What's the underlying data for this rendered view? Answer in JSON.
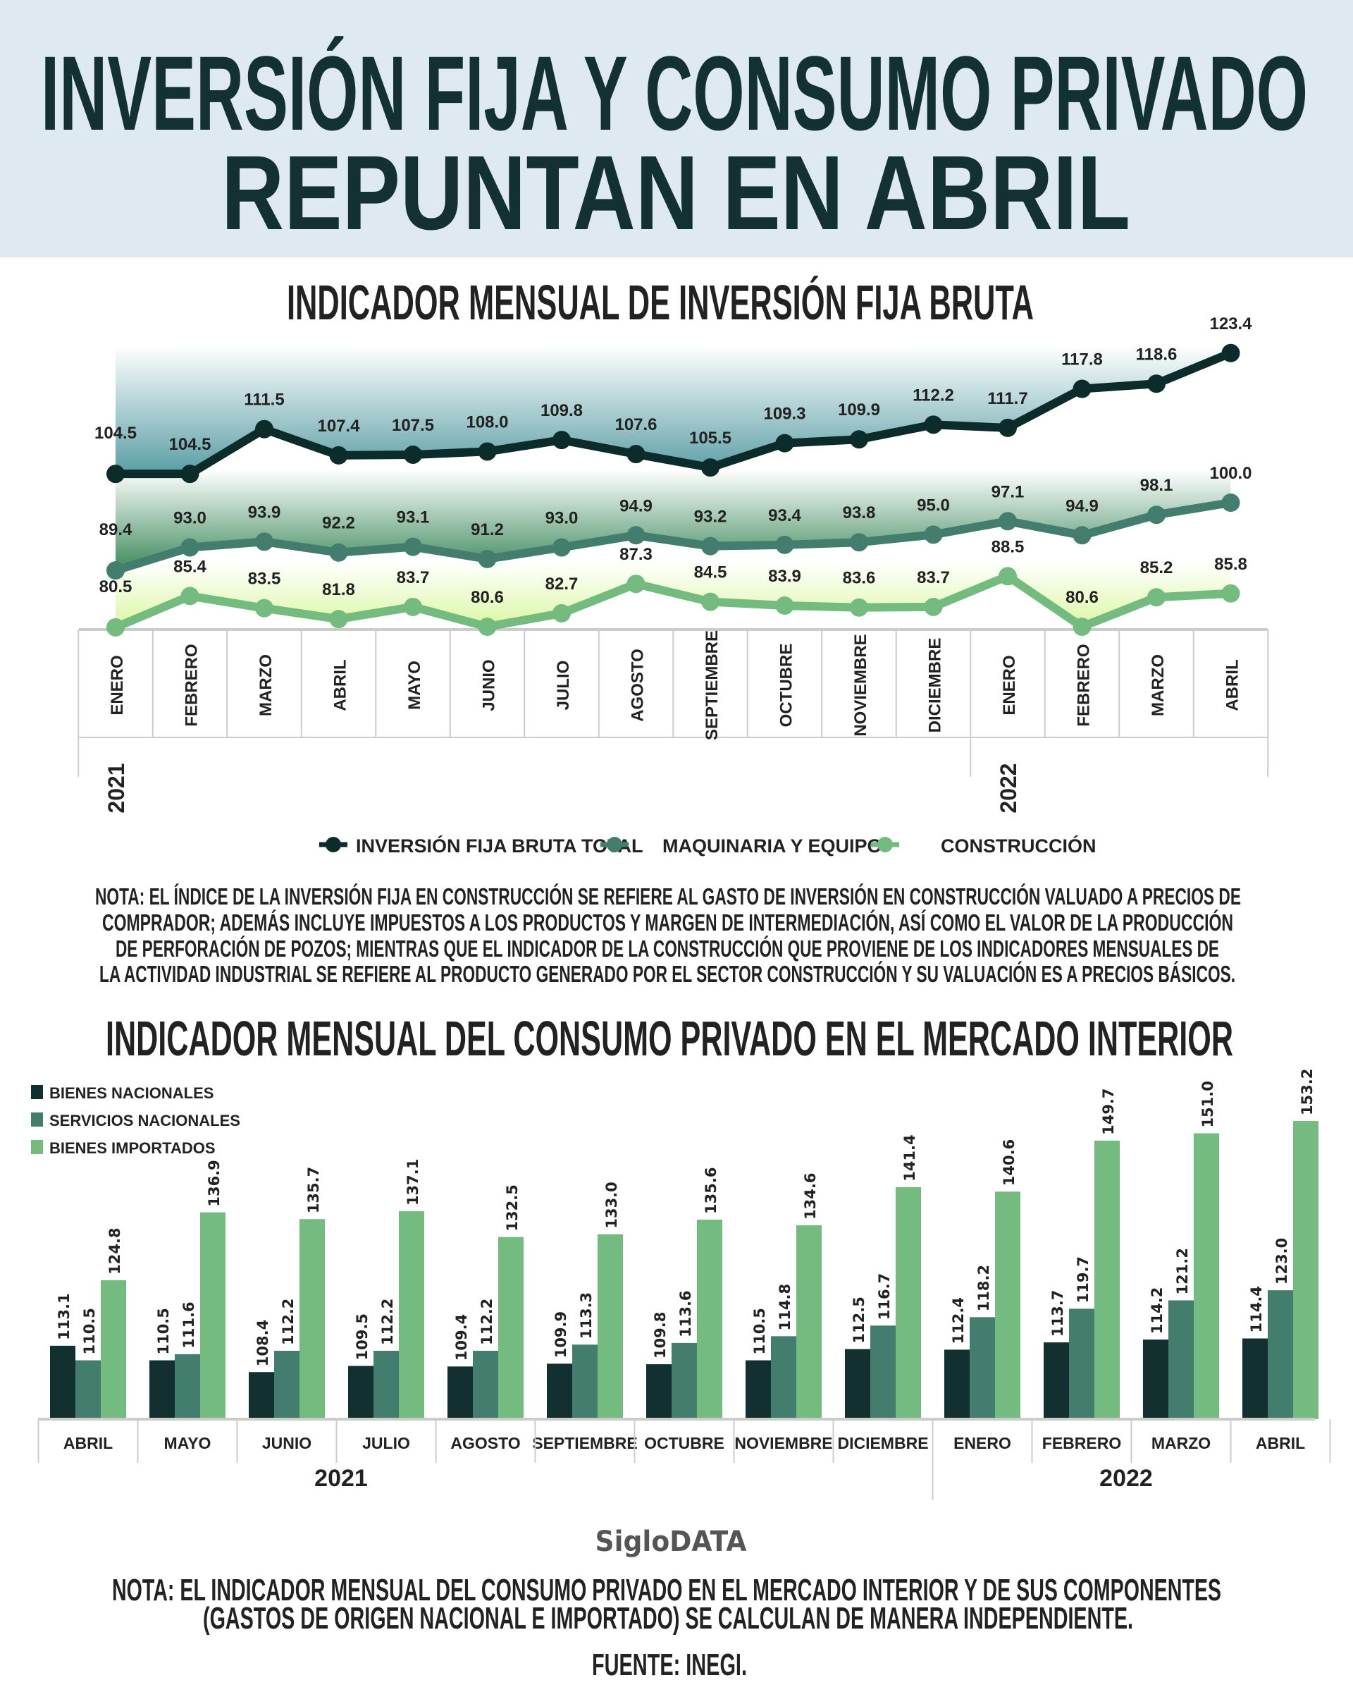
{
  "header": {
    "title_line1": "INVERSIÓN FIJA Y CONSUMO PRIVADO",
    "title_line2": "REPUNTAN EN ABRIL",
    "background": "#dfeaf0"
  },
  "notes": {
    "investment": [
      "NOTA: EL ÍNDICE DE LA INVERSIÓN FIJA EN CONSTRUCCIÓN SE REFIERE AL GASTO DE INVERSIÓN EN CONSTRUCCIÓN VALUADO A PRECIOS DE",
      "COMPRADOR; ADEMÁS  INCLUYE  IMPUESTOS A LOS PRODUCTOS Y MARGEN DE INTERMEDIACIÓN, ASÍ COMO EL VALOR DE LA PRODUCCIÓN",
      "DE PERFORACIÓN DE POZOS; MIENTRAS QUE EL INDICADOR DE LA CONSTRUCCIÓN QUE PROVIENE DE LOS INDICADORES MENSUALES DE",
      "LA ACTIVIDAD INDUSTRIAL SE REFIERE AL PRODUCTO GENERADO POR EL SECTOR CONSTRUCCIÓN Y SU VALUACIÓN ES A PRECIOS BÁSICOS."
    ],
    "consumption": [
      "NOTA: EL INDICADOR MENSUAL DEL CONSUMO PRIVADO EN EL MERCADO INTERIOR Y DE SUS COMPONENTES",
      "(GASTOS DE ORIGEN NACIONAL E IMPORTADO) SE CALCULAN DE MANERA INDEPENDIENTE."
    ],
    "brand": "SigloDATA",
    "source": "FUENTE: INEGI."
  },
  "chart_data": [
    {
      "type": "line",
      "title": "INDICADOR MENSUAL DE INVERSIÓN FIJA BRUTA",
      "categories": [
        "ENERO",
        "FEBRERO",
        "MARZO",
        "ABRIL",
        "MAYO",
        "JUNIO",
        "JULIO",
        "AGOSTO",
        "SEPTIEMBRE",
        "OCTUBRE",
        "NOVIEMBRE",
        "DICIEMBRE",
        "ENERO",
        "FEBRERO",
        "MARZO",
        "ABRIL"
      ],
      "years": [
        {
          "label": "2021",
          "start": 0
        },
        {
          "label": "2022",
          "start": 12
        }
      ],
      "legend_placement": "bottom",
      "grid": false,
      "series": [
        {
          "name": "INVERSIÓN FIJA BRUTA TOTAL",
          "color": "#0c2b2b",
          "fill": "#5a9ea5",
          "values": [
            104.5,
            104.5,
            111.5,
            107.4,
            107.5,
            108.0,
            109.8,
            107.6,
            105.5,
            109.3,
            109.9,
            112.2,
            111.7,
            117.8,
            118.6,
            123.4
          ]
        },
        {
          "name": "MAQUINARIA Y EQUIPO",
          "color": "#437d6e",
          "fill": "#3e8a5c",
          "values": [
            89.4,
            93.0,
            93.9,
            92.2,
            93.1,
            91.2,
            93.0,
            94.9,
            93.2,
            93.4,
            93.8,
            95.0,
            97.1,
            94.9,
            98.1,
            100.0
          ]
        },
        {
          "name": "CONSTRUCCIÓN",
          "color": "#74bb80",
          "fill": "#dcf7a4",
          "values": [
            80.5,
            85.4,
            83.5,
            81.8,
            83.7,
            80.6,
            82.7,
            87.3,
            84.5,
            83.9,
            83.6,
            83.7,
            88.5,
            80.6,
            85.2,
            85.8
          ]
        }
      ]
    },
    {
      "type": "bar",
      "title": "INDICADOR MENSUAL DEL CONSUMO PRIVADO EN EL MERCADO INTERIOR",
      "categories": [
        "ABRIL",
        "MAYO",
        "JUNIO",
        "JULIO",
        "AGOSTO",
        "SEPTIEMBRE",
        "OCTUBRE",
        "NOVIEMBRE",
        "DICIEMBRE",
        "ENERO",
        "FEBRERO",
        "MARZO",
        "ABRIL"
      ],
      "years": [
        {
          "label": "2021",
          "start": 0
        },
        {
          "label": "2022",
          "start": 9
        }
      ],
      "legend_placement": "top-left",
      "ylim": [
        100,
        155
      ],
      "grid": false,
      "series": [
        {
          "name": "BIENES NACIONALES",
          "color": "#12302f",
          "values": [
            113.1,
            110.5,
            108.4,
            109.5,
            109.4,
            109.9,
            109.8,
            110.5,
            112.5,
            112.4,
            113.7,
            114.2,
            114.4
          ]
        },
        {
          "name": "SERVICIOS NACIONALES",
          "color": "#437d6e",
          "values": [
            110.5,
            111.6,
            112.2,
            112.2,
            112.2,
            113.3,
            113.6,
            114.8,
            116.7,
            118.2,
            119.7,
            121.2,
            123.0
          ]
        },
        {
          "name": "BIENES IMPORTADOS",
          "color": "#74bb80",
          "values": [
            124.8,
            136.9,
            135.7,
            137.1,
            132.5,
            133.0,
            135.6,
            134.6,
            141.4,
            140.6,
            149.7,
            151.0,
            153.2
          ]
        }
      ]
    }
  ]
}
